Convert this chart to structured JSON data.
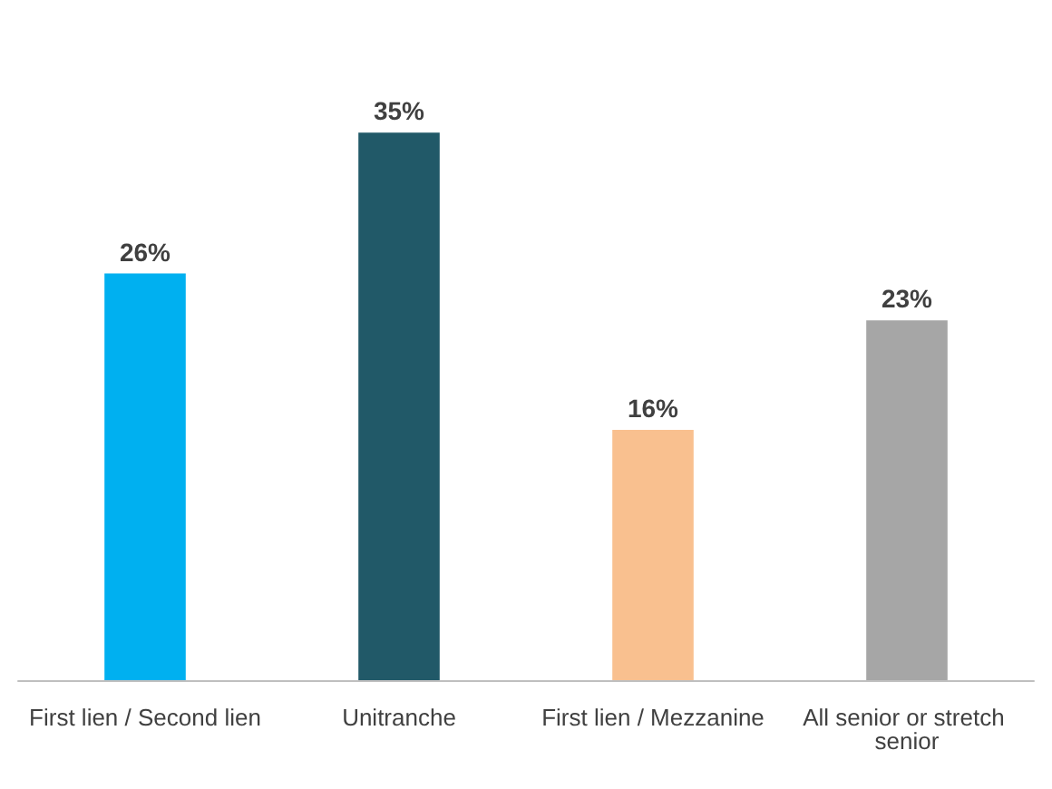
{
  "chart_data": {
    "type": "bar",
    "categories": [
      "First lien / Second lien",
      "Unitranche",
      "First lien / Mezzanine",
      "All senior or stretch senior"
    ],
    "values": [
      26,
      35,
      16,
      23
    ],
    "colors": [
      "#00b0f0",
      "#215968",
      "#f9c08f",
      "#a6a6a6"
    ],
    "value_labels": [
      "26%",
      "35%",
      "16%",
      "23%"
    ]
  }
}
